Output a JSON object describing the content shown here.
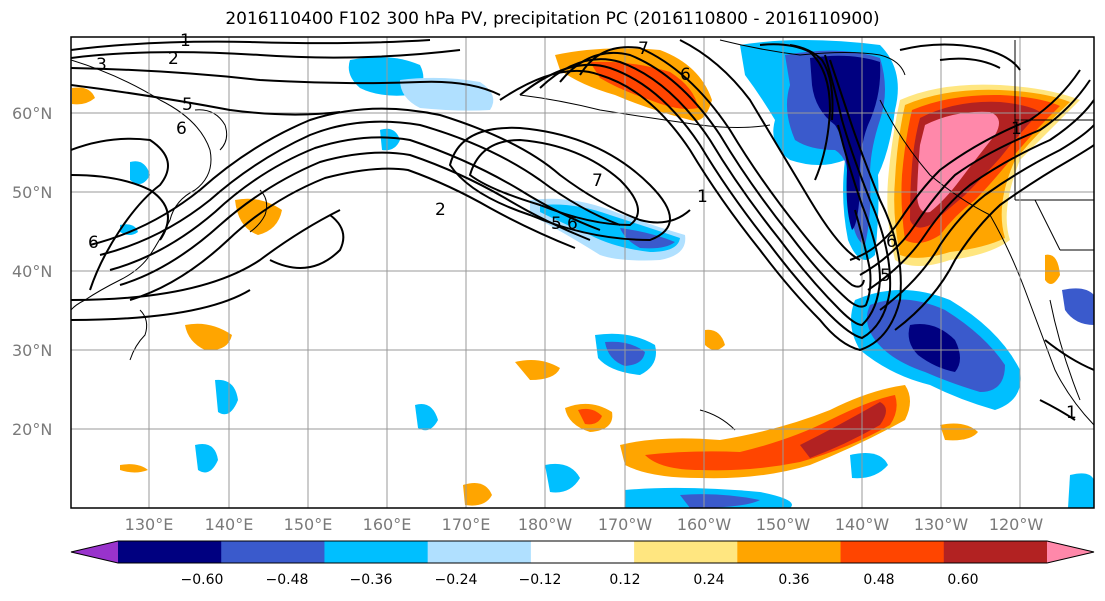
{
  "title": "2016110400 F102 300 hPa PV, precipitation PC (2016110800 - 2016110900)",
  "map": {
    "lat_labels": [
      "60°N",
      "50°N",
      "40°N",
      "30°N",
      "20°N"
    ],
    "lon_labels": [
      "130°E",
      "140°E",
      "150°E",
      "160°E",
      "170°E",
      "180°W",
      "170°W",
      "160°W",
      "150°W",
      "140°W",
      "130°W",
      "120°W"
    ],
    "contour_labels": [
      "1",
      "2",
      "3",
      "5",
      "6",
      "7",
      "2",
      "5",
      "6",
      "7",
      "6",
      "1",
      "1",
      "6",
      "5",
      "6",
      "1"
    ]
  },
  "colorbar": {
    "colors": [
      "#9933cc",
      "#000080",
      "#3a5acc",
      "#00bfff",
      "#b0e0ff",
      "#ffffff",
      "#ffe680",
      "#ffa500",
      "#ff4500",
      "#b22222",
      "#ff88aa"
    ],
    "tick_labels": [
      "−0.60",
      "−0.48",
      "−0.36",
      "−0.24",
      "−0.12",
      "0.12",
      "0.24",
      "0.36",
      "0.48",
      "0.60"
    ]
  }
}
